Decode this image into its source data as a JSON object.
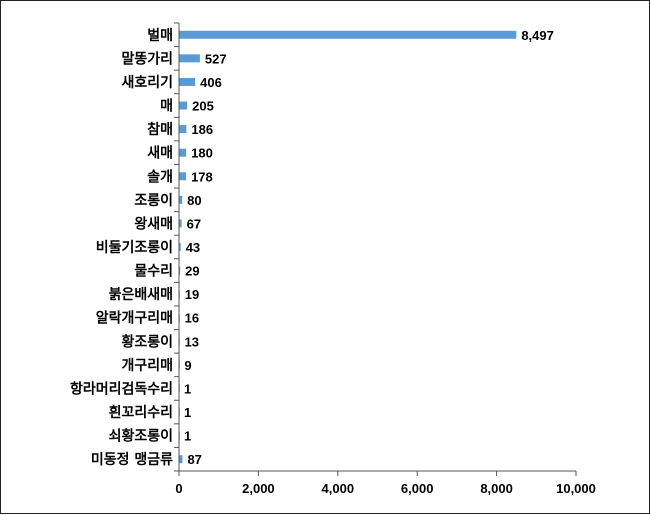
{
  "chart_data": {
    "type": "bar",
    "orientation": "horizontal",
    "categories": [
      "벌매",
      "말똥가리",
      "새호리기",
      "매",
      "참매",
      "새매",
      "솔개",
      "조롱이",
      "왕새매",
      "비둘기조롱이",
      "물수리",
      "붉은배새매",
      "알락개구리매",
      "황조롱이",
      "개구리매",
      "항라머리검독수리",
      "흰꼬리수리",
      "쇠황조롱이",
      "미동정 맹금류"
    ],
    "values": [
      8497,
      527,
      406,
      205,
      186,
      180,
      178,
      80,
      67,
      43,
      29,
      19,
      16,
      13,
      9,
      1,
      1,
      1,
      87
    ],
    "value_labels": [
      "8,497",
      "527",
      "406",
      "205",
      "186",
      "180",
      "178",
      "80",
      "67",
      "43",
      "29",
      "19",
      "16",
      "13",
      "9",
      "1",
      "1",
      "1",
      "87"
    ],
    "x_ticks": [
      0,
      2000,
      4000,
      6000,
      8000,
      10000
    ],
    "x_tick_labels": [
      "0",
      "2,000",
      "4,000",
      "6,000",
      "8,000",
      "10,000"
    ],
    "xlim": [
      0,
      10000
    ],
    "title": "",
    "xlabel": "",
    "ylabel": "",
    "grid": false,
    "bar_color": "#5B9BD5"
  }
}
